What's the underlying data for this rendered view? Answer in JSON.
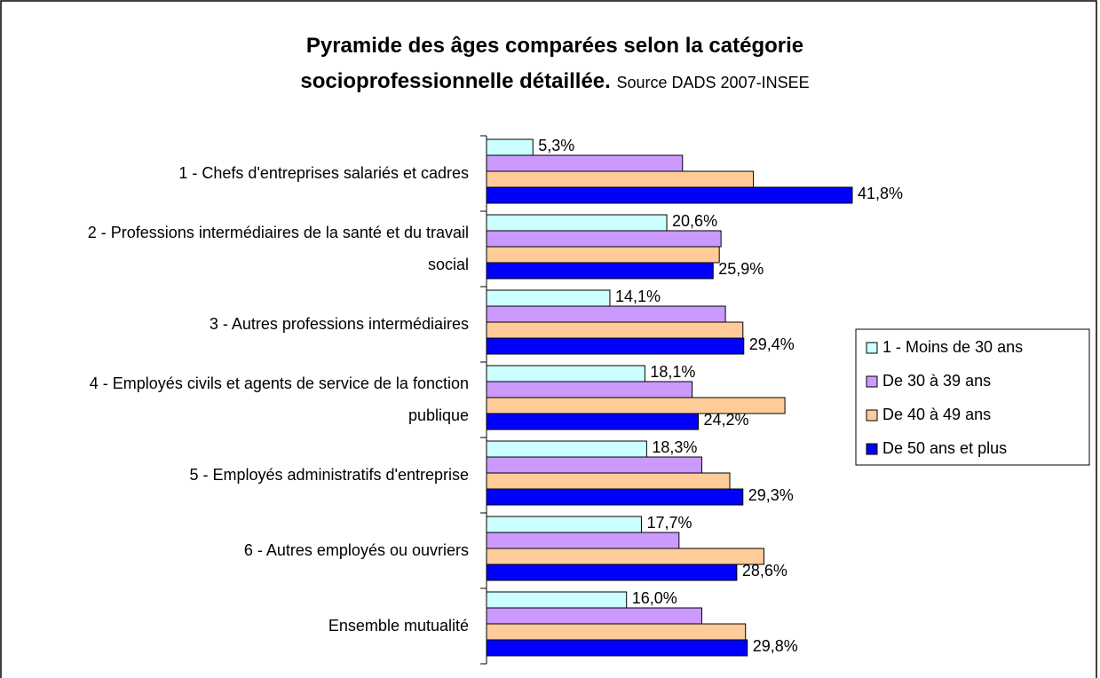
{
  "chart_data": {
    "type": "bar",
    "orientation": "horizontal",
    "title": "Pyramide des âges comparées selon la catégorie socioprofessionnelle détaillée.",
    "subtitle": "Source DADS 2007-INSEE",
    "categories": [
      "1 - Chefs d'entreprises salariés et cadres",
      "2 - Professions intermédiaires de la santé et du travail social",
      "3 - Autres professions intermédiaires",
      "4 - Employés civils et agents de service de la fonction publique",
      "5 - Employés administratifs d'entreprise",
      "6 - Autres employés ou ouvriers",
      "Ensemble mutualité"
    ],
    "series": [
      {
        "name": "1 - Moins de 30 ans",
        "color": "#ccffff",
        "values": [
          5.3,
          20.6,
          14.1,
          18.1,
          18.3,
          17.7,
          16.0
        ],
        "value_labels": [
          "5,3%",
          "20,6%",
          "14,1%",
          "18,1%",
          "18,3%",
          "17,7%",
          "16,0%"
        ]
      },
      {
        "name": "De 30 à 39 ans",
        "color": "#cc99ff",
        "values": [
          22.4,
          26.8,
          27.3,
          23.5,
          24.6,
          22.0,
          24.6
        ]
      },
      {
        "name": "De 40 à 49 ans",
        "color": "#ffcc99",
        "values": [
          30.5,
          26.6,
          29.3,
          34.1,
          27.8,
          31.7,
          29.6
        ]
      },
      {
        "name": "De 50 ans et plus",
        "color": "#0000ff",
        "values": [
          41.8,
          25.9,
          29.4,
          24.2,
          29.3,
          28.6,
          29.8
        ],
        "value_labels": [
          "41,8%",
          "25,9%",
          "29,4%",
          "24,2%",
          "29,3%",
          "28,6%",
          "29,8%"
        ]
      }
    ],
    "legend": "right"
  }
}
